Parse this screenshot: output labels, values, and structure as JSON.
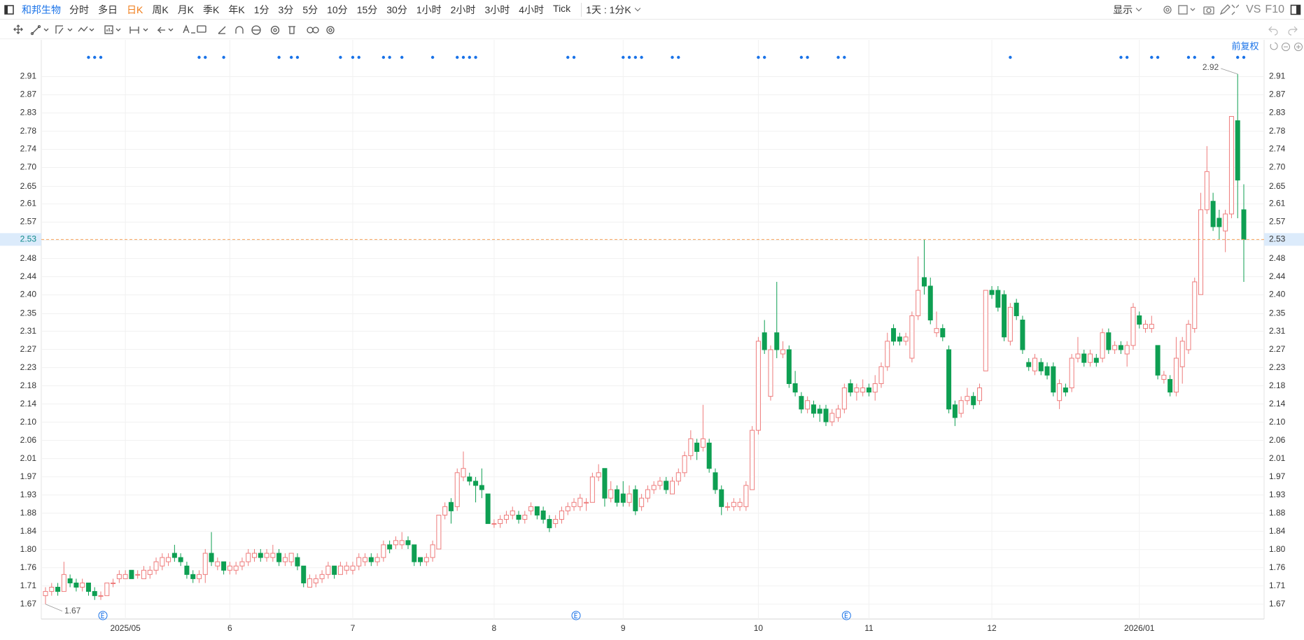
{
  "toolbar": {
    "symbol": "和邦生物",
    "periods": [
      "分时",
      "多日",
      "日K",
      "周K",
      "月K",
      "季K",
      "年K",
      "1分",
      "3分",
      "5分",
      "10分",
      "15分",
      "30分",
      "1小时",
      "2小时",
      "3小时",
      "4小时",
      "Tick"
    ],
    "interval": "1天 : 1分K",
    "display": "显示",
    "vs": "VS",
    "f10": "F10"
  },
  "adjustment": "前复权",
  "chart_data": {
    "type": "candlestick",
    "up_color": "#ee7b7b",
    "down_color": "#0e9f52",
    "ylim": [
      1.635,
      2.973
    ],
    "yticks": [
      1.67,
      {
        "value": 1.7129,
        "label": "1.71"
      },
      {
        "value": 1.7558,
        "label": "1.76"
      },
      {
        "value": 1.7987,
        "label": "1.80"
      },
      {
        "value": 1.8416,
        "label": "1.84"
      },
      {
        "value": 1.8845,
        "label": "1.88"
      },
      {
        "value": 1.9274,
        "label": "1.93"
      },
      {
        "value": 1.9703,
        "label": "1.97"
      },
      {
        "value": 2.0132,
        "label": "2.01"
      },
      {
        "value": 2.0561,
        "label": "2.06"
      },
      {
        "value": 2.099,
        "label": "2.10"
      },
      {
        "value": 2.1419,
        "label": "2.14"
      },
      {
        "value": 2.1848,
        "label": "2.18"
      },
      {
        "value": 2.2277,
        "label": "2.23"
      },
      {
        "value": 2.2706,
        "label": "2.27"
      },
      {
        "value": 2.3135,
        "label": "2.31"
      },
      {
        "value": 2.3549,
        "label": "2.35"
      },
      {
        "value": 2.3993,
        "label": "2.40"
      },
      {
        "value": 2.4421,
        "label": "2.44"
      },
      {
        "value": 2.4849,
        "label": "2.48"
      },
      {
        "value": 2.5279,
        "label": "2.53"
      },
      {
        "value": 2.5708,
        "label": "2.57"
      },
      {
        "value": 2.6137,
        "label": "2.61"
      },
      {
        "value": 2.6549,
        "label": "2.65"
      },
      {
        "value": 2.6995,
        "label": "2.70"
      },
      {
        "value": 2.7424,
        "label": "2.74"
      },
      {
        "value": 2.7849,
        "label": "2.78"
      },
      {
        "value": 2.8282,
        "label": "2.83"
      },
      {
        "value": 2.8711,
        "label": "2.87"
      },
      {
        "value": 2.914,
        "label": "2.91"
      }
    ],
    "grid": true,
    "last_price": 2.53,
    "last_price_color": "#f5a35c",
    "max_marker": 2.92,
    "min_marker": 1.67,
    "categories": [
      null,
      null,
      null,
      null,
      null,
      null,
      null,
      null,
      null,
      null,
      null,
      null,
      null,
      "2025/05",
      null,
      null,
      null,
      null,
      null,
      null,
      null,
      null,
      null,
      null,
      null,
      null,
      null,
      null,
      null,
      null,
      "6",
      null,
      null,
      null,
      null,
      null,
      null,
      null,
      null,
      null,
      null,
      null,
      null,
      null,
      null,
      null,
      null,
      null,
      null,
      null,
      "7",
      null,
      null,
      null,
      null,
      null,
      null,
      null,
      null,
      null,
      null,
      null,
      null,
      null,
      null,
      null,
      null,
      null,
      null,
      null,
      null,
      null,
      null,
      "8",
      null,
      null,
      null,
      null,
      null,
      null,
      null,
      null,
      null,
      null,
      null,
      null,
      null,
      null,
      null,
      null,
      null,
      null,
      null,
      null,
      "9",
      null,
      null,
      null,
      null,
      null,
      null,
      null,
      null,
      null,
      null,
      null,
      null,
      null,
      null,
      null,
      null,
      null,
      null,
      null,
      null,
      null,
      "10",
      null,
      null,
      null,
      null,
      null,
      null,
      null,
      null,
      null,
      null,
      null,
      null,
      null,
      null,
      null,
      null,
      null,
      "11",
      null,
      null,
      null,
      null,
      null,
      null,
      null,
      null,
      null,
      null,
      null,
      null,
      null,
      null,
      null,
      null,
      null,
      null,
      null,
      "12",
      null,
      null,
      null,
      null,
      null,
      null,
      null,
      null,
      null,
      null,
      null,
      null,
      null,
      null,
      null,
      null,
      null,
      null,
      null,
      null,
      null,
      null,
      null,
      "2026/01",
      null,
      null,
      null,
      null,
      null,
      null,
      null,
      null,
      null,
      null,
      null,
      null,
      null,
      null,
      null,
      null,
      null
    ],
    "open": [
      1.69,
      1.7,
      1.71,
      1.7,
      1.73,
      1.72,
      1.71,
      1.72,
      1.7,
      1.69,
      1.69,
      1.72,
      1.73,
      1.73,
      1.75,
      1.74,
      1.73,
      1.74,
      1.75,
      1.76,
      1.77,
      1.79,
      1.78,
      1.76,
      1.74,
      1.73,
      1.74,
      1.79,
      1.76,
      1.77,
      1.75,
      1.75,
      1.76,
      1.77,
      1.78,
      1.79,
      1.78,
      1.78,
      1.79,
      1.77,
      1.77,
      1.78,
      1.76,
      1.71,
      1.72,
      1.73,
      1.74,
      1.76,
      1.74,
      1.75,
      1.75,
      1.76,
      1.77,
      1.78,
      1.77,
      1.78,
      1.81,
      1.81,
      1.81,
      1.82,
      1.81,
      1.78,
      1.77,
      1.78,
      1.8,
      1.88,
      1.91,
      1.9,
      1.97,
      1.97,
      1.96,
      1.95,
      1.93,
      1.86,
      1.86,
      1.87,
      1.88,
      1.88,
      1.87,
      1.89,
      1.9,
      1.89,
      1.87,
      1.86,
      1.87,
      1.89,
      1.9,
      1.9,
      1.91,
      1.91,
      1.97,
      1.99,
      1.92,
      1.94,
      1.93,
      1.91,
      1.94,
      1.9,
      1.92,
      1.94,
      1.95,
      1.96,
      1.93,
      1.96,
      1.98,
      2.02,
      2.05,
      2.04,
      2.05,
      1.98,
      1.94,
      1.9,
      1.9,
      1.9,
      1.9,
      1.94,
      2.08,
      2.31,
      2.16,
      2.31,
      2.26,
      2.27,
      2.19,
      2.16,
      2.13,
      2.14,
      2.13,
      2.13,
      2.1,
      2.11,
      2.13,
      2.19,
      2.17,
      2.17,
      2.18,
      2.17,
      2.19,
      2.23,
      2.32,
      2.3,
      2.29,
      2.25,
      2.35,
      2.44,
      2.42,
      2.31,
      2.32,
      2.27,
      2.14,
      2.12,
      2.15,
      2.16,
      2.15,
      2.22,
      2.41,
      2.41,
      2.4,
      2.29,
      2.38,
      2.34,
      2.24,
      2.22,
      2.24,
      2.23,
      2.23,
      2.15,
      2.18,
      2.18,
      2.25,
      2.26,
      2.24,
      2.25,
      2.25,
      2.31,
      2.27,
      2.28,
      2.26,
      2.28,
      2.35,
      2.32,
      2.32,
      2.28,
      2.2,
      2.2,
      2.17,
      2.23,
      2.27,
      2.32,
      2.4,
      2.6,
      2.62,
      2.58,
      2.55,
      2.59,
      2.81,
      2.6
    ],
    "high": [
      1.71,
      1.72,
      1.72,
      1.77,
      1.74,
      1.73,
      1.73,
      1.72,
      1.71,
      1.7,
      1.72,
      1.73,
      1.75,
      1.75,
      1.75,
      1.75,
      1.76,
      1.76,
      1.78,
      1.79,
      1.79,
      1.81,
      1.79,
      1.77,
      1.75,
      1.75,
      1.8,
      1.84,
      1.78,
      1.77,
      1.77,
      1.77,
      1.78,
      1.8,
      1.8,
      1.8,
      1.8,
      1.81,
      1.8,
      1.79,
      1.79,
      1.79,
      1.76,
      1.74,
      1.74,
      1.75,
      1.77,
      1.76,
      1.77,
      1.77,
      1.77,
      1.79,
      1.79,
      1.79,
      1.79,
      1.82,
      1.82,
      1.83,
      1.84,
      1.83,
      1.81,
      1.78,
      1.79,
      1.82,
      1.88,
      1.91,
      1.92,
      1.99,
      2.03,
      1.98,
      1.97,
      1.99,
      1.93,
      1.87,
      1.88,
      1.89,
      1.9,
      1.89,
      1.89,
      1.91,
      1.9,
      1.9,
      1.88,
      1.88,
      1.9,
      1.91,
      1.92,
      1.93,
      1.92,
      1.98,
      2.0,
      1.99,
      1.96,
      1.95,
      1.96,
      1.95,
      1.95,
      1.93,
      1.95,
      1.96,
      1.97,
      1.97,
      1.97,
      1.99,
      2.03,
      2.08,
      2.06,
      2.14,
      2.06,
      1.99,
      1.95,
      1.91,
      1.92,
      1.92,
      1.96,
      2.09,
      2.3,
      2.34,
      2.28,
      2.43,
      2.29,
      2.28,
      2.22,
      2.17,
      2.16,
      2.15,
      2.14,
      2.14,
      2.13,
      2.14,
      2.19,
      2.2,
      2.19,
      2.2,
      2.19,
      2.21,
      2.24,
      2.31,
      2.33,
      2.31,
      2.31,
      2.36,
      2.49,
      2.53,
      2.44,
      2.36,
      2.33,
      2.28,
      2.15,
      2.16,
      2.18,
      2.17,
      2.19,
      2.41,
      2.42,
      2.42,
      2.41,
      2.38,
      2.39,
      2.35,
      2.25,
      2.26,
      2.25,
      2.24,
      2.24,
      2.2,
      2.19,
      2.26,
      2.3,
      2.27,
      2.27,
      2.26,
      2.32,
      2.32,
      2.29,
      2.29,
      2.29,
      2.38,
      2.36,
      2.34,
      2.35,
      2.28,
      2.22,
      2.21,
      2.3,
      2.3,
      2.34,
      2.44,
      2.64,
      2.75,
      2.64,
      2.6,
      2.6,
      2.82,
      2.92,
      2.66
    ],
    "low": [
      1.67,
      1.69,
      1.69,
      1.7,
      1.71,
      1.7,
      1.7,
      1.69,
      1.68,
      1.68,
      1.69,
      1.71,
      1.72,
      1.73,
      1.73,
      1.73,
      1.73,
      1.73,
      1.74,
      1.75,
      1.76,
      1.77,
      1.76,
      1.73,
      1.72,
      1.72,
      1.72,
      1.76,
      1.75,
      1.74,
      1.74,
      1.74,
      1.75,
      1.76,
      1.77,
      1.77,
      1.77,
      1.77,
      1.76,
      1.76,
      1.76,
      1.75,
      1.71,
      1.71,
      1.71,
      1.72,
      1.73,
      1.73,
      1.74,
      1.74,
      1.74,
      1.75,
      1.76,
      1.76,
      1.76,
      1.77,
      1.79,
      1.8,
      1.8,
      1.8,
      1.76,
      1.76,
      1.76,
      1.77,
      1.8,
      1.87,
      1.86,
      1.89,
      1.96,
      1.95,
      1.91,
      1.92,
      1.86,
      1.85,
      1.85,
      1.86,
      1.87,
      1.86,
      1.86,
      1.88,
      1.87,
      1.86,
      1.84,
      1.85,
      1.86,
      1.88,
      1.89,
      1.89,
      1.89,
      1.91,
      1.96,
      1.9,
      1.91,
      1.9,
      1.9,
      1.9,
      1.88,
      1.89,
      1.91,
      1.93,
      1.94,
      1.93,
      1.93,
      1.95,
      1.97,
      2.01,
      2.01,
      2.03,
      1.98,
      1.93,
      1.88,
      1.89,
      1.89,
      1.89,
      1.89,
      1.94,
      2.07,
      2.26,
      2.15,
      2.25,
      2.25,
      2.18,
      2.16,
      2.12,
      2.12,
      2.11,
      2.1,
      2.09,
      2.09,
      2.1,
      2.12,
      2.16,
      2.15,
      2.16,
      2.16,
      2.15,
      2.18,
      2.22,
      2.28,
      2.28,
      2.28,
      2.24,
      2.34,
      2.4,
      2.33,
      2.3,
      2.29,
      2.12,
      2.09,
      2.11,
      2.14,
      2.13,
      2.14,
      2.22,
      2.39,
      2.36,
      2.29,
      2.28,
      2.34,
      2.26,
      2.22,
      2.21,
      2.21,
      2.2,
      2.16,
      2.13,
      2.16,
      2.17,
      2.24,
      2.23,
      2.23,
      2.23,
      2.24,
      2.26,
      2.26,
      2.26,
      2.23,
      2.27,
      2.32,
      2.31,
      2.31,
      2.2,
      2.19,
      2.16,
      2.16,
      2.19,
      2.26,
      2.31,
      2.4,
      2.59,
      2.55,
      2.53,
      2.5,
      2.58,
      2.58,
      2.43
    ],
    "close": [
      1.7,
      1.71,
      1.7,
      1.74,
      1.72,
      1.71,
      1.72,
      1.7,
      1.69,
      1.69,
      1.72,
      1.72,
      1.74,
      1.74,
      1.73,
      1.74,
      1.75,
      1.75,
      1.77,
      1.78,
      1.78,
      1.78,
      1.77,
      1.74,
      1.73,
      1.74,
      1.79,
      1.77,
      1.77,
      1.75,
      1.76,
      1.76,
      1.77,
      1.79,
      1.79,
      1.78,
      1.79,
      1.79,
      1.77,
      1.78,
      1.79,
      1.76,
      1.72,
      1.73,
      1.73,
      1.74,
      1.76,
      1.74,
      1.76,
      1.76,
      1.76,
      1.78,
      1.78,
      1.77,
      1.78,
      1.81,
      1.8,
      1.82,
      1.82,
      1.81,
      1.77,
      1.77,
      1.78,
      1.81,
      1.88,
      1.9,
      1.89,
      1.98,
      1.99,
      1.96,
      1.95,
      1.94,
      1.86,
      1.86,
      1.87,
      1.88,
      1.89,
      1.87,
      1.88,
      1.9,
      1.88,
      1.87,
      1.85,
      1.87,
      1.89,
      1.9,
      1.91,
      1.92,
      1.91,
      1.97,
      1.98,
      1.92,
      1.94,
      1.91,
      1.91,
      1.93,
      1.89,
      1.92,
      1.94,
      1.95,
      1.96,
      1.94,
      1.96,
      1.98,
      2.02,
      2.06,
      2.03,
      2.06,
      1.99,
      1.94,
      1.9,
      1.9,
      1.91,
      1.91,
      1.95,
      2.08,
      2.29,
      2.27,
      2.27,
      2.27,
      2.27,
      2.19,
      2.17,
      2.13,
      2.15,
      2.12,
      2.12,
      2.1,
      2.12,
      2.13,
      2.18,
      2.17,
      2.18,
      2.18,
      2.17,
      2.19,
      2.23,
      2.29,
      2.29,
      2.29,
      2.3,
      2.35,
      2.41,
      2.42,
      2.34,
      2.32,
      2.3,
      2.13,
      2.11,
      2.15,
      2.16,
      2.14,
      2.18,
      2.41,
      2.4,
      2.37,
      2.3,
      2.37,
      2.35,
      2.27,
      2.23,
      2.25,
      2.22,
      2.21,
      2.17,
      2.19,
      2.17,
      2.25,
      2.26,
      2.24,
      2.26,
      2.24,
      2.31,
      2.27,
      2.28,
      2.27,
      2.28,
      2.37,
      2.33,
      2.33,
      2.33,
      2.21,
      2.21,
      2.17,
      2.25,
      2.29,
      2.33,
      2.43,
      2.6,
      2.69,
      2.56,
      2.56,
      2.59,
      2.82,
      2.67,
      2.53
    ]
  }
}
